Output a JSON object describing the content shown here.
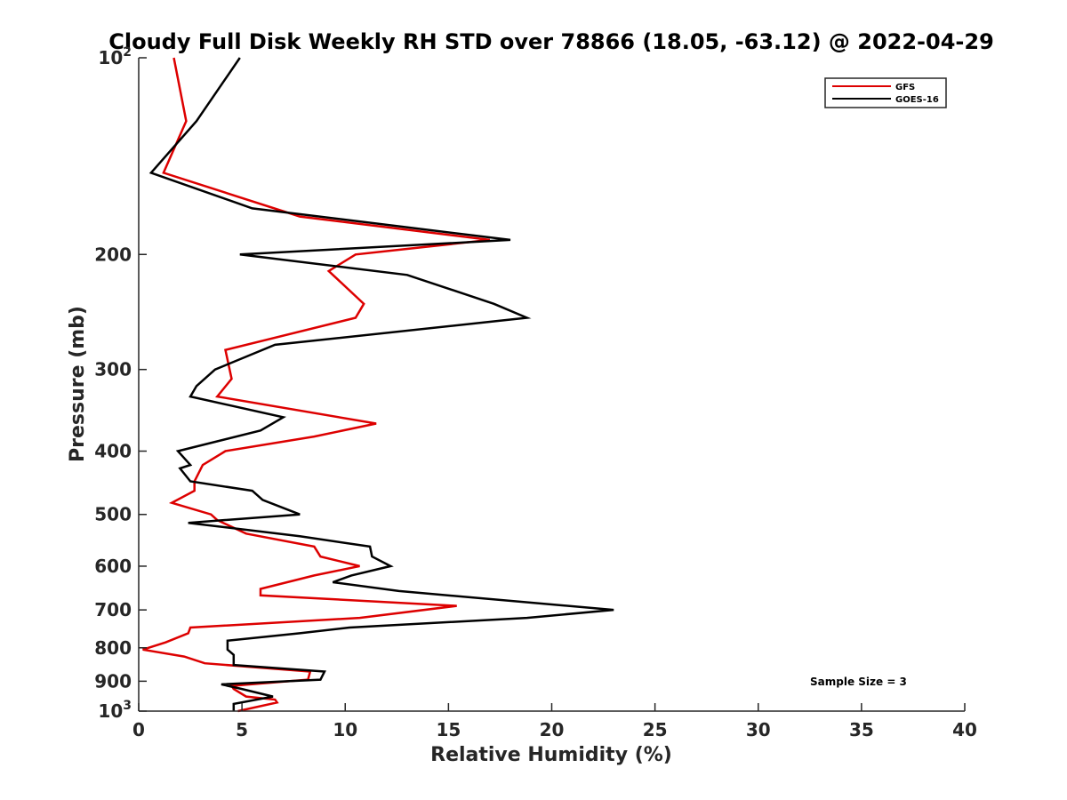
{
  "chart_data": {
    "type": "line",
    "title": "Cloudy Full Disk Weekly RH STD over 78866 (18.05, -63.12) @ 2022-04-29",
    "xlabel": "Relative Humidity (%)",
    "ylabel": "Pressure (mb)",
    "xlim": [
      0,
      40
    ],
    "ylim": [
      100,
      1000
    ],
    "yscale": "log",
    "yreversed": true,
    "grid": false,
    "x_ticks": [
      0,
      5,
      10,
      15,
      20,
      25,
      30,
      35,
      40
    ],
    "x_tick_labels": [
      "0",
      "5",
      "10",
      "15",
      "20",
      "25",
      "30",
      "35",
      "40"
    ],
    "y_ticks": [
      100,
      200,
      300,
      400,
      500,
      600,
      700,
      800,
      900,
      1000
    ],
    "y_tick_labels": [
      {
        "base": "10",
        "exp": "2"
      },
      {
        "base": "200",
        "exp": ""
      },
      {
        "base": "300",
        "exp": ""
      },
      {
        "base": "400",
        "exp": ""
      },
      {
        "base": "500",
        "exp": ""
      },
      {
        "base": "600",
        "exp": ""
      },
      {
        "base": "700",
        "exp": ""
      },
      {
        "base": "800",
        "exp": ""
      },
      {
        "base": "900",
        "exp": ""
      },
      {
        "base": "10",
        "exp": "3"
      }
    ],
    "legend": {
      "position": "top-right"
    },
    "annotation": "Sample Size = 3",
    "series": [
      {
        "name": "GFS",
        "color": "#dd0000",
        "points": [
          [
            1.7,
            100
          ],
          [
            2.3,
            125
          ],
          [
            1.2,
            150
          ],
          [
            7.8,
            175
          ],
          [
            17.0,
            190
          ],
          [
            10.5,
            200
          ],
          [
            9.2,
            212
          ],
          [
            10.9,
            238
          ],
          [
            10.5,
            250
          ],
          [
            4.2,
            280
          ],
          [
            4.5,
            310
          ],
          [
            3.8,
            330
          ],
          [
            11.5,
            363
          ],
          [
            8.5,
            380
          ],
          [
            4.2,
            400
          ],
          [
            3.1,
            420
          ],
          [
            2.7,
            445
          ],
          [
            2.7,
            460
          ],
          [
            1.6,
            480
          ],
          [
            3.5,
            500
          ],
          [
            3.8,
            510
          ],
          [
            5.2,
            535
          ],
          [
            8.5,
            560
          ],
          [
            8.8,
            580
          ],
          [
            10.7,
            600
          ],
          [
            8.5,
            620
          ],
          [
            5.9,
            650
          ],
          [
            5.9,
            665
          ],
          [
            15.4,
            690
          ],
          [
            10.7,
            720
          ],
          [
            2.5,
            745
          ],
          [
            2.4,
            760
          ],
          [
            1.3,
            785
          ],
          [
            0.2,
            805
          ],
          [
            2.2,
            825
          ],
          [
            3.2,
            845
          ],
          [
            8.3,
            870
          ],
          [
            8.2,
            895
          ],
          [
            4.5,
            915
          ],
          [
            4.6,
            925
          ],
          [
            5.2,
            950
          ],
          [
            6.6,
            960
          ],
          [
            6.7,
            970
          ],
          [
            4.8,
            1000
          ]
        ]
      },
      {
        "name": "GOES-16",
        "color": "#000000",
        "points": [
          [
            4.9,
            100
          ],
          [
            2.8,
            125
          ],
          [
            0.6,
            150
          ],
          [
            5.5,
            170
          ],
          [
            18.0,
            190
          ],
          [
            4.9,
            200
          ],
          [
            13.0,
            215
          ],
          [
            17.2,
            238
          ],
          [
            18.8,
            250
          ],
          [
            6.6,
            275
          ],
          [
            3.7,
            300
          ],
          [
            2.8,
            318
          ],
          [
            2.5,
            330
          ],
          [
            7.0,
            355
          ],
          [
            5.9,
            372
          ],
          [
            1.9,
            400
          ],
          [
            2.5,
            420
          ],
          [
            2.0,
            425
          ],
          [
            2.5,
            445
          ],
          [
            5.5,
            460
          ],
          [
            6.0,
            475
          ],
          [
            7.8,
            500
          ],
          [
            2.4,
            515
          ],
          [
            7.8,
            540
          ],
          [
            11.2,
            560
          ],
          [
            11.3,
            580
          ],
          [
            12.2,
            600
          ],
          [
            10.3,
            620
          ],
          [
            9.4,
            635
          ],
          [
            12.6,
            655
          ],
          [
            23.0,
            700
          ],
          [
            18.8,
            720
          ],
          [
            10.2,
            745
          ],
          [
            7.8,
            760
          ],
          [
            4.3,
            780
          ],
          [
            4.3,
            805
          ],
          [
            4.6,
            820
          ],
          [
            4.6,
            835
          ],
          [
            4.6,
            850
          ],
          [
            9.0,
            870
          ],
          [
            8.8,
            895
          ],
          [
            4.0,
            910
          ],
          [
            5.0,
            925
          ],
          [
            6.5,
            950
          ],
          [
            4.6,
            975
          ],
          [
            4.6,
            1000
          ]
        ]
      }
    ]
  }
}
